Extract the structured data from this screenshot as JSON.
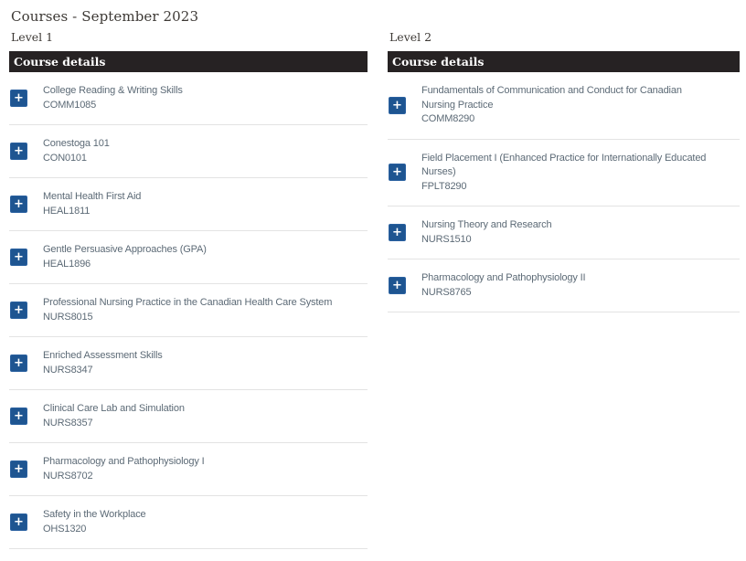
{
  "page": {
    "title": "Courses - September 2023"
  },
  "icons": {
    "expand_glyph": "+",
    "expand_icon_name": "plus-icon"
  },
  "colors": {
    "expand_button_bg": "#1e5591",
    "table_header_bg": "#262223",
    "table_header_text": "#ffffff",
    "course_text": "#5c6a76",
    "heading_text": "#3d3935",
    "row_divider": "#e3e3e3",
    "page_bg": "#ffffff"
  },
  "columns": [
    {
      "level_label": "Level 1",
      "table_header": "Course details",
      "courses": [
        {
          "title": "College Reading & Writing Skills",
          "code": "COMM1085"
        },
        {
          "title": "Conestoga 101",
          "code": "CON0101"
        },
        {
          "title": "Mental Health First Aid",
          "code": "HEAL1811"
        },
        {
          "title": "Gentle Persuasive Approaches (GPA)",
          "code": "HEAL1896"
        },
        {
          "title": "Professional Nursing Practice in the Canadian Health Care System",
          "code": "NURS8015"
        },
        {
          "title": "Enriched Assessment Skills",
          "code": "NURS8347"
        },
        {
          "title": "Clinical Care Lab and Simulation",
          "code": "NURS8357"
        },
        {
          "title": "Pharmacology and Pathophysiology I",
          "code": "NURS8702"
        },
        {
          "title": "Safety in the Workplace",
          "code": "OHS1320"
        }
      ]
    },
    {
      "level_label": "Level 2",
      "table_header": "Course details",
      "courses": [
        {
          "title": "Fundamentals of Communication and Conduct for Canadian\nNursing Practice",
          "code": "COMM8290"
        },
        {
          "title": "Field Placement I (Enhanced Practice for Internationally Educated\nNurses)",
          "code": "FPLT8290"
        },
        {
          "title": "Nursing Theory and Research",
          "code": "NURS1510"
        },
        {
          "title": "Pharmacology and Pathophysiology II",
          "code": "NURS8765"
        }
      ]
    }
  ]
}
